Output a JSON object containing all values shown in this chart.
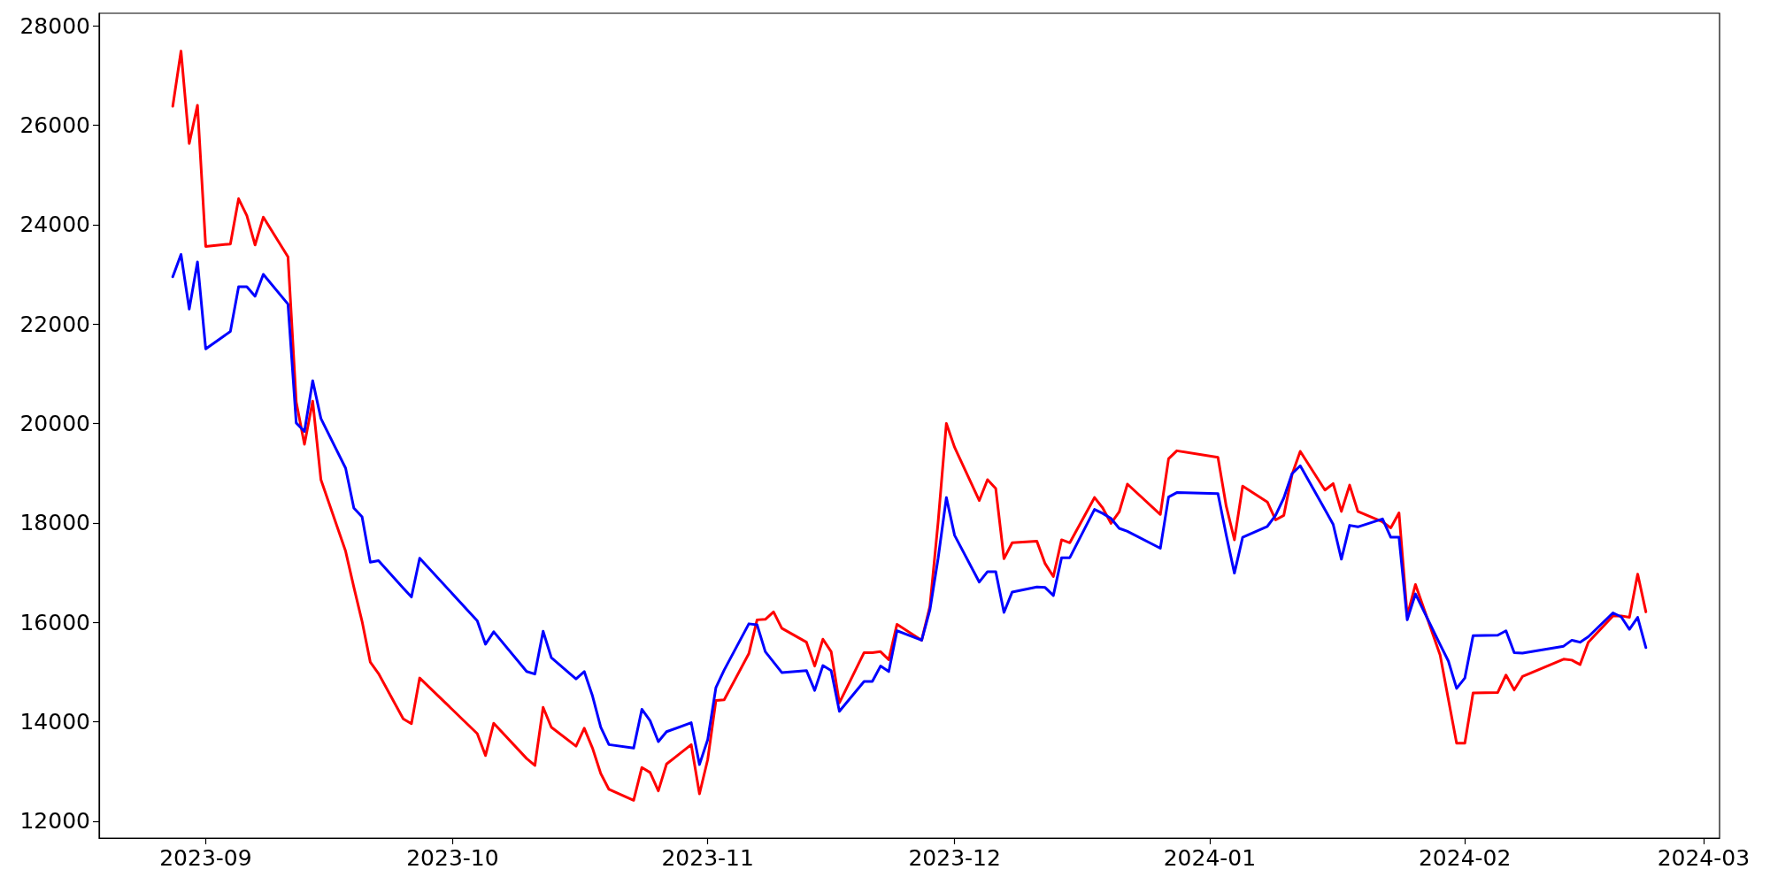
{
  "chart_data": {
    "type": "line",
    "x": [
      "2023-08-28",
      "2023-08-29",
      "2023-08-30",
      "2023-08-31",
      "2023-09-01",
      "2023-09-04",
      "2023-09-05",
      "2023-09-06",
      "2023-09-07",
      "2023-09-08",
      "2023-09-11",
      "2023-09-12",
      "2023-09-13",
      "2023-09-14",
      "2023-09-15",
      "2023-09-18",
      "2023-09-19",
      "2023-09-20",
      "2023-09-21",
      "2023-09-22",
      "2023-09-25",
      "2023-09-26",
      "2023-09-27",
      "2023-10-04",
      "2023-10-05",
      "2023-10-06",
      "2023-10-10",
      "2023-10-11",
      "2023-10-12",
      "2023-10-13",
      "2023-10-16",
      "2023-10-17",
      "2023-10-18",
      "2023-10-19",
      "2023-10-20",
      "2023-10-23",
      "2023-10-24",
      "2023-10-25",
      "2023-10-26",
      "2023-10-27",
      "2023-10-30",
      "2023-10-31",
      "2023-11-01",
      "2023-11-02",
      "2023-11-03",
      "2023-11-06",
      "2023-11-07",
      "2023-11-08",
      "2023-11-09",
      "2023-11-10",
      "2023-11-13",
      "2023-11-14",
      "2023-11-15",
      "2023-11-16",
      "2023-11-17",
      "2023-11-20",
      "2023-11-21",
      "2023-11-22",
      "2023-11-23",
      "2023-11-24",
      "2023-11-27",
      "2023-11-28",
      "2023-11-29",
      "2023-11-30",
      "2023-12-01",
      "2023-12-04",
      "2023-12-05",
      "2023-12-06",
      "2023-12-07",
      "2023-12-08",
      "2023-12-11",
      "2023-12-12",
      "2023-12-13",
      "2023-12-14",
      "2023-12-15",
      "2023-12-18",
      "2023-12-19",
      "2023-12-20",
      "2023-12-21",
      "2023-12-22",
      "2023-12-26",
      "2023-12-27",
      "2023-12-28",
      "2024-01-02",
      "2024-01-03",
      "2024-01-04",
      "2024-01-05",
      "2024-01-08",
      "2024-01-09",
      "2024-01-10",
      "2024-01-11",
      "2024-01-12",
      "2024-01-15",
      "2024-01-16",
      "2024-01-17",
      "2024-01-18",
      "2024-01-19",
      "2024-01-22",
      "2024-01-23",
      "2024-01-24",
      "2024-01-25",
      "2024-01-26",
      "2024-01-29",
      "2024-01-30",
      "2024-01-31",
      "2024-02-01",
      "2024-02-02",
      "2024-02-05",
      "2024-02-06",
      "2024-02-07",
      "2024-02-08",
      "2024-02-13",
      "2024-02-14",
      "2024-02-15",
      "2024-02-16",
      "2024-02-19",
      "2024-02-20",
      "2024-02-21",
      "2024-02-22",
      "2024-02-23"
    ],
    "series": [
      {
        "color": "#ff0000",
        "values": [
          26380,
          27490,
          25630,
          26400,
          23560,
          23610,
          24520,
          24180,
          23590,
          24150,
          23350,
          20430,
          19580,
          20450,
          18870,
          17430,
          16710,
          16020,
          15200,
          14970,
          14060,
          13960,
          14880,
          13760,
          13320,
          13970,
          13260,
          13120,
          14290,
          13890,
          13510,
          13870,
          13470,
          12960,
          12640,
          12420,
          13080,
          12980,
          12610,
          13150,
          13540,
          12550,
          13240,
          14430,
          14440,
          15370,
          16050,
          16060,
          16210,
          15880,
          15600,
          15120,
          15660,
          15410,
          14380,
          15390,
          15390,
          15410,
          15250,
          15960,
          15640,
          16320,
          18020,
          20000,
          19520,
          18450,
          18870,
          18690,
          17280,
          17600,
          17630,
          17180,
          16920,
          17660,
          17600,
          18510,
          18300,
          17990,
          18220,
          18780,
          18170,
          19290,
          19450,
          19320,
          18340,
          17660,
          18740,
          18420,
          18060,
          18150,
          18970,
          19440,
          18660,
          18790,
          18230,
          18760,
          18230,
          18020,
          17900,
          18200,
          16130,
          16760,
          15340,
          14450,
          13570,
          13570,
          14580,
          14590,
          14940,
          14640,
          14910,
          15260,
          15240,
          15150,
          15600,
          16130,
          16130,
          16100,
          16970,
          16210
        ]
      },
      {
        "color": "#0000ff",
        "values": [
          22950,
          23400,
          22300,
          23250,
          21500,
          21850,
          22750,
          22750,
          22560,
          23000,
          22400,
          20010,
          19840,
          20860,
          20100,
          19100,
          18300,
          18120,
          17210,
          17240,
          16690,
          16510,
          17290,
          16030,
          15560,
          15810,
          15010,
          14960,
          15820,
          15290,
          14860,
          15010,
          14520,
          13890,
          13540,
          13470,
          14250,
          14020,
          13600,
          13800,
          13980,
          13140,
          13640,
          14690,
          15040,
          15970,
          15950,
          15410,
          15200,
          14990,
          15030,
          14630,
          15130,
          15030,
          14210,
          14810,
          14810,
          15120,
          15010,
          15830,
          15640,
          16250,
          17290,
          18510,
          17750,
          16810,
          17020,
          17020,
          16200,
          16610,
          16710,
          16700,
          16540,
          17300,
          17300,
          18270,
          18190,
          18090,
          17890,
          17830,
          17490,
          18520,
          18610,
          18590,
          17760,
          16990,
          17710,
          17930,
          18150,
          18500,
          18990,
          19150,
          18270,
          17970,
          17270,
          17950,
          17920,
          18080,
          17710,
          17710,
          16050,
          16570,
          15550,
          15220,
          14670,
          14880,
          15730,
          15740,
          15830,
          15390,
          15380,
          15520,
          15640,
          15600,
          15710,
          16190,
          16110,
          15860,
          16100,
          15490
        ]
      }
    ],
    "xlim": [
      "2023-08-19T01:12",
      "2024-03-02T22:48"
    ],
    "xticks": [
      "2023-09",
      "2023-10",
      "2023-11",
      "2023-12",
      "2024-01",
      "2024-02",
      "2024-03"
    ],
    "ylim": [
      11660,
      28250
    ],
    "yticks": [
      12000,
      14000,
      16000,
      18000,
      20000,
      22000,
      24000,
      26000,
      28000
    ],
    "grid": false,
    "marker": "none",
    "line_style": "solid"
  }
}
